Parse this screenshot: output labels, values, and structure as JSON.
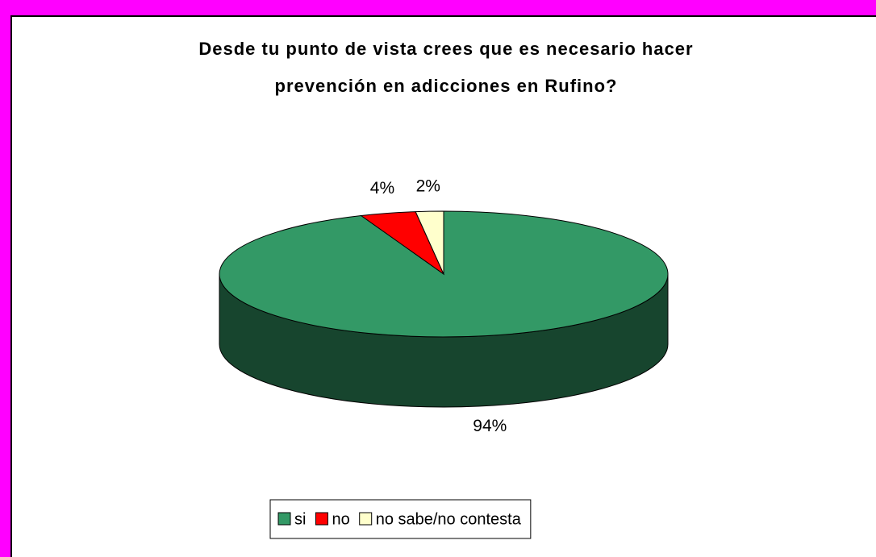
{
  "chart_data": {
    "type": "pie",
    "title": [
      "Desde tu punto de vista crees que es necesario hacer",
      "prevención en adicciones en Rufino?"
    ],
    "categories": [
      "si",
      "no",
      "no sabe/no contesta"
    ],
    "values": [
      94,
      4,
      2
    ],
    "value_labels": [
      "94%",
      "4%",
      "2%"
    ],
    "colors": [
      "#339966",
      "#ff0000",
      "#ffffcc"
    ],
    "legend": "bottom"
  }
}
